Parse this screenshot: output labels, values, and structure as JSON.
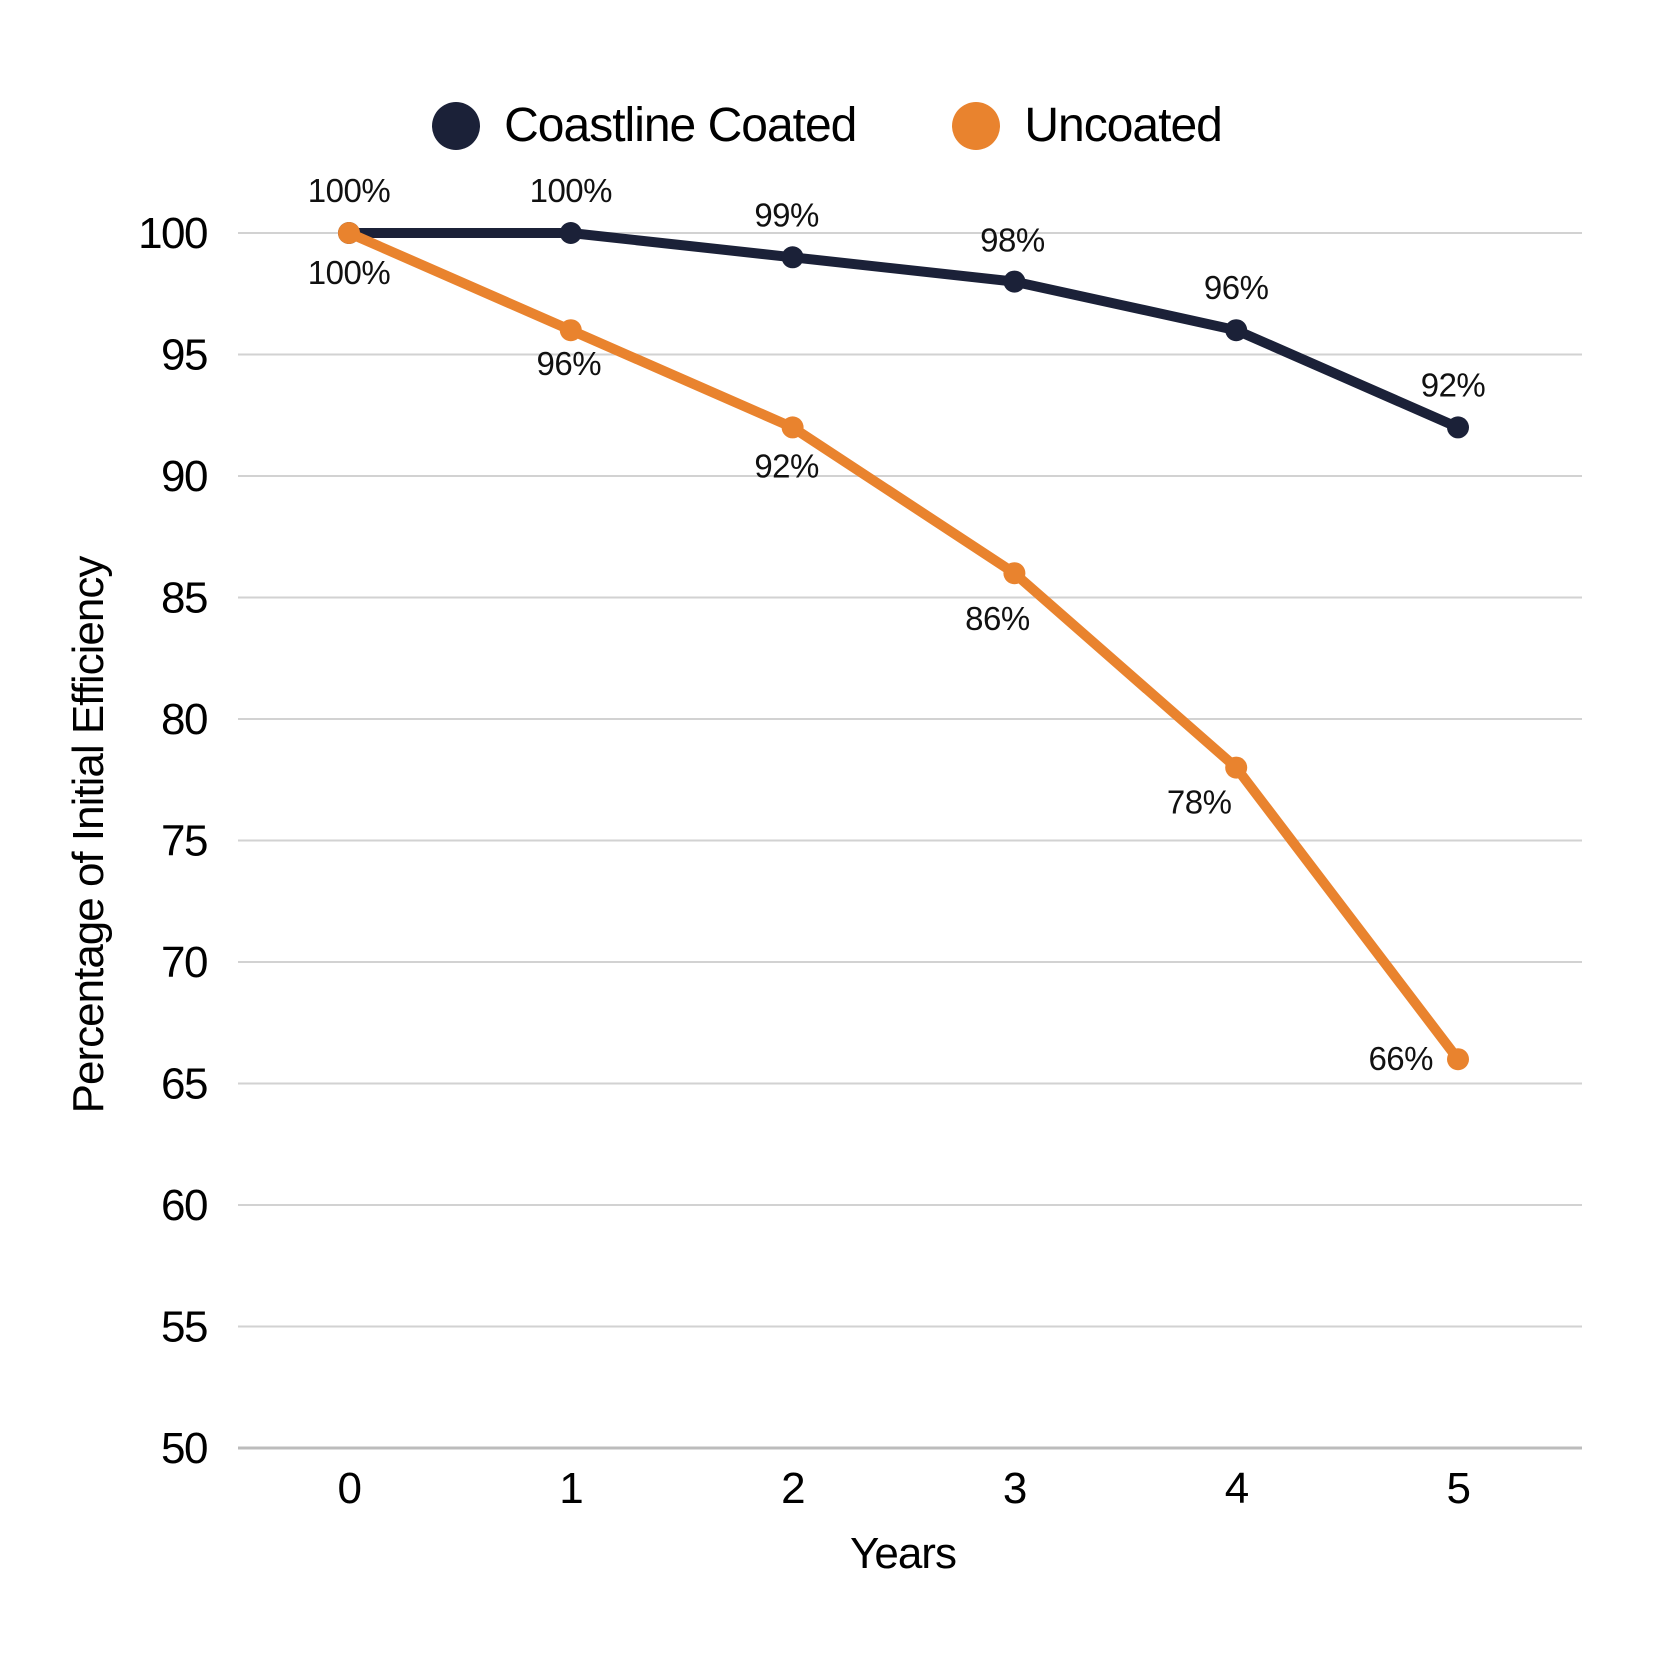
{
  "chart_data": {
    "type": "line",
    "title": "",
    "xlabel": "Years",
    "ylabel": "Percentage of Initial Efficiency",
    "x": [
      0,
      1,
      2,
      3,
      4,
      5
    ],
    "x_tick_labels": [
      "0",
      "1",
      "2",
      "3",
      "4",
      "5"
    ],
    "ylim": [
      50,
      100
    ],
    "y_ticks": [
      50,
      55,
      60,
      65,
      70,
      75,
      80,
      85,
      90,
      95,
      100
    ],
    "y_tick_labels": [
      "50",
      "55",
      "60",
      "65",
      "70",
      "75",
      "80",
      "85",
      "90",
      "95",
      "100"
    ],
    "grid": "horizontal",
    "legend_position": "top-center",
    "series": [
      {
        "name": "Coastline Coated",
        "color": "#1b2138",
        "marker": "circle",
        "values": [
          100,
          100,
          99,
          98,
          96,
          92
        ],
        "point_labels": [
          "100%",
          "100%",
          "99%",
          "98%",
          "96%",
          "92%"
        ]
      },
      {
        "name": "Uncoated",
        "color": "#e9832e",
        "marker": "circle",
        "values": [
          100,
          96,
          92,
          86,
          78,
          66
        ],
        "point_labels": [
          "100%",
          "96%",
          "92%",
          "86%",
          "78%",
          "66%"
        ]
      }
    ]
  },
  "colors": {
    "background": "#ffffff",
    "gridline": "#d2d2d2",
    "baseline": "#bcbcbc",
    "tick_text": "#000000",
    "point_label_text": "#111111"
  }
}
